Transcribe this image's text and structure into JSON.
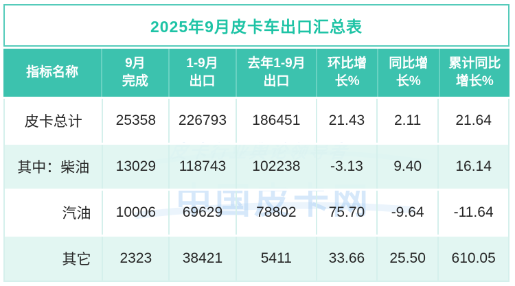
{
  "title": "2025年9月皮卡车出口汇总表",
  "watermark": {
    "slogan": "皮卡行业舆论领导者",
    "brand": "中国皮卡网"
  },
  "colors": {
    "header_bg": "#3cc2ae",
    "title_text": "#1dc3a5",
    "row_alt_bg": "#dff5f1",
    "grid_line": "#d5f0ec",
    "header_divider": "#69d2c2",
    "body_text": "#262626",
    "watermark_blue": "#a3cbf3"
  },
  "table": {
    "columns": [
      {
        "label": "指标名称"
      },
      {
        "label": "9月\n完成"
      },
      {
        "label": "1-9月\n出口"
      },
      {
        "label": "去年1-9月\n出口"
      },
      {
        "label": "环比增\n长%"
      },
      {
        "label": "同比增\n长%"
      },
      {
        "label": "累计同比\n增长%"
      }
    ],
    "rows": [
      {
        "label": "皮卡总计",
        "indent": false,
        "values": [
          "25358",
          "226793",
          "186451",
          "21.43",
          "2.11",
          "21.64"
        ]
      },
      {
        "label": "其中：柴油",
        "indent": false,
        "values": [
          "13029",
          "118743",
          "102238",
          "-3.13",
          "9.40",
          "16.14"
        ]
      },
      {
        "label": "汽油",
        "indent": true,
        "values": [
          "10006",
          "69629",
          "78802",
          "75.70",
          "-9.64",
          "-11.64"
        ]
      },
      {
        "label": "其它",
        "indent": true,
        "values": [
          "2323",
          "38421",
          "5411",
          "33.66",
          "25.50",
          "610.05"
        ]
      }
    ]
  },
  "chart_data": {
    "type": "table",
    "title": "2025年9月皮卡车出口汇总表",
    "columns": [
      "指标名称",
      "9月完成",
      "1-9月出口",
      "去年1-9月出口",
      "环比增长%",
      "同比增长%",
      "累计同比增长%"
    ],
    "rows": [
      [
        "皮卡总计",
        25358,
        226793,
        186451,
        21.43,
        2.11,
        21.64
      ],
      [
        "其中：柴油",
        13029,
        118743,
        102238,
        -3.13,
        9.4,
        16.14
      ],
      [
        "汽油",
        10006,
        69629,
        78802,
        75.7,
        -9.64,
        -11.64
      ],
      [
        "其它",
        2323,
        38421,
        5411,
        33.66,
        25.5,
        610.05
      ]
    ]
  }
}
